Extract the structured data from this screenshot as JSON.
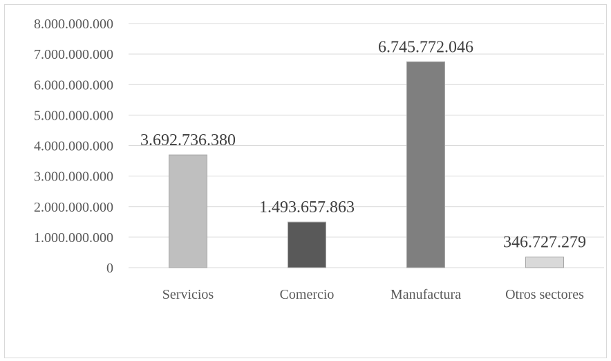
{
  "chart_data": {
    "type": "bar",
    "categories": [
      "Servicios",
      "Comercio",
      "Manufactura",
      "Otros sectores"
    ],
    "values": [
      3692736380,
      1493657863,
      6745772046,
      346727279
    ],
    "data_labels": [
      "3.692.736.380",
      "1.493.657.863",
      "6.745.772.046",
      "346.727.279"
    ],
    "y_ticks": [
      0,
      1000000000,
      2000000000,
      3000000000,
      4000000000,
      5000000000,
      6000000000,
      7000000000,
      8000000000
    ],
    "y_tick_labels": [
      "0",
      "1.000.000.000",
      "2.000.000.000",
      "3.000.000.000",
      "4.000.000.000",
      "5.000.000.000",
      "6.000.000.000",
      "7.000.000.000",
      "8.000.000.000"
    ],
    "ylim": [
      0,
      8000000000
    ],
    "title": "",
    "xlabel": "",
    "ylabel": "",
    "grid": "horizontal",
    "legend": "none",
    "colors": [
      "#bfbfbf",
      "#595959",
      "#7f7f7f",
      "#d9d9d9"
    ]
  }
}
